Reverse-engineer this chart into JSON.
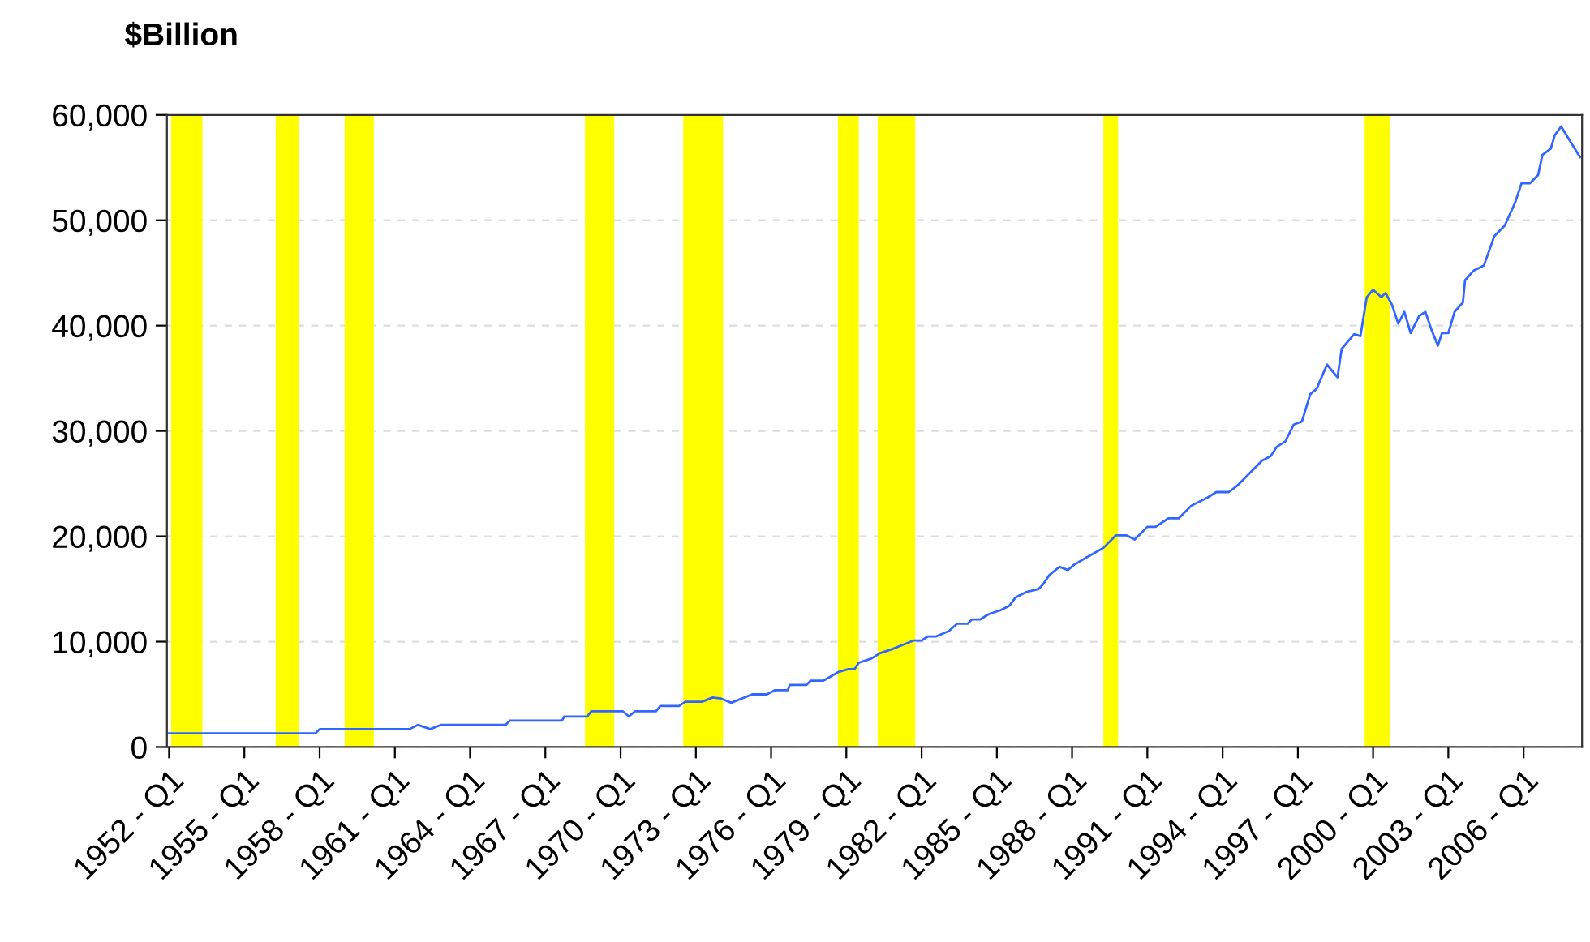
{
  "chart_data": {
    "type": "line",
    "ylabel": "$Billion",
    "x": [
      "1952-01",
      "1957-11",
      "1958-01",
      "1961-08",
      "1961-12",
      "1962-06",
      "1962-11",
      "1965-06",
      "1965-08",
      "1967-09",
      "1967-10",
      "1968-09",
      "1968-11",
      "1970-02",
      "1970-05",
      "1970-08",
      "1971-06",
      "1971-08",
      "1972-05",
      "1972-08",
      "1973-04",
      "1973-09",
      "1974-01",
      "1974-06",
      "1975-04",
      "1975-11",
      "1976-03",
      "1976-09",
      "1976-10",
      "1977-06",
      "1977-08",
      "1978-02",
      "1978-09",
      "1979-02",
      "1979-05",
      "1979-07",
      "1980-01",
      "1980-05",
      "1980-11",
      "1981-04",
      "1981-09",
      "1982-01",
      "1982-04",
      "1982-08",
      "1983-02",
      "1983-06",
      "1983-11",
      "1984-01",
      "1984-05",
      "1984-09",
      "1985-03",
      "1985-07",
      "1985-10",
      "1986-03",
      "1986-09",
      "1986-11",
      "1987-02",
      "1987-07",
      "1987-11",
      "1988-02",
      "1988-08",
      "1989-04",
      "1989-10",
      "1990-03",
      "1990-07",
      "1991-01",
      "1991-05",
      "1991-11",
      "1992-04",
      "1992-10",
      "1993-06",
      "1993-10",
      "1994-04",
      "1994-08",
      "1995-08",
      "1995-12",
      "1996-03",
      "1996-07",
      "1996-11",
      "1997-03",
      "1997-07",
      "1997-10",
      "1998-03",
      "1998-08",
      "1998-10",
      "1999-04",
      "1999-07",
      "1999-10",
      "2000-01",
      "2000-05",
      "2000-07",
      "2000-10",
      "2001-01",
      "2001-04",
      "2001-07",
      "2001-11",
      "2002-02",
      "2002-05",
      "2002-08",
      "2002-10",
      "2003-01",
      "2003-04",
      "2003-08",
      "2003-09",
      "2004-01",
      "2004-06",
      "2004-11",
      "2005-04",
      "2005-09",
      "2005-12",
      "2006-04",
      "2006-08",
      "2006-10",
      "2007-02",
      "2007-04",
      "2007-07",
      "2007-11",
      "2008-04"
    ],
    "series": [
      {
        "color": "#3366ff",
        "values": [
          1300,
          1300,
          1700,
          1700,
          2100,
          1700,
          2100,
          2100,
          2500,
          2500,
          2900,
          2900,
          3400,
          3400,
          2900,
          3400,
          3400,
          3900,
          3900,
          4300,
          4300,
          4700,
          4600,
          4200,
          5000,
          5000,
          5400,
          5400,
          5900,
          5900,
          6300,
          6300,
          7100,
          7400,
          7400,
          8000,
          8400,
          8900,
          9300,
          9700,
          10100,
          10100,
          10500,
          10500,
          11000,
          11700,
          11700,
          12100,
          12100,
          12600,
          13000,
          13400,
          14200,
          14700,
          15000,
          15400,
          16300,
          17100,
          16800,
          17300,
          18000,
          18900,
          20100,
          20100,
          19700,
          20900,
          20900,
          21700,
          21700,
          22900,
          23700,
          24200,
          24200,
          24800,
          27200,
          27600,
          28500,
          29000,
          30600,
          30900,
          33500,
          34000,
          36300,
          35100,
          37800,
          39200,
          39000,
          42700,
          43400,
          42700,
          43100,
          42000,
          40200,
          41300,
          39300,
          40900,
          41300,
          39600,
          38100,
          39300,
          39300,
          41300,
          42200,
          44300,
          45200,
          45700,
          48500,
          49500,
          51700,
          53500,
          53500,
          54300,
          56200,
          56800,
          58100,
          58900,
          57600,
          56000
        ]
      }
    ],
    "xlim": [
      "1951-12",
      "2008-05"
    ],
    "xticks": [
      {
        "value": "1952-01",
        "label": "1952 - Q1"
      },
      {
        "value": "1955-01",
        "label": "1955 - Q1"
      },
      {
        "value": "1958-01",
        "label": "1958 - Q1"
      },
      {
        "value": "1961-01",
        "label": "1961 - Q1"
      },
      {
        "value": "1964-01",
        "label": "1964 - Q1"
      },
      {
        "value": "1967-01",
        "label": "1967 - Q1"
      },
      {
        "value": "1970-01",
        "label": "1970 - Q1"
      },
      {
        "value": "1973-01",
        "label": "1973 - Q1"
      },
      {
        "value": "1976-01",
        "label": "1976 - Q1"
      },
      {
        "value": "1979-01",
        "label": "1979 - Q1"
      },
      {
        "value": "1982-01",
        "label": "1982 - Q1"
      },
      {
        "value": "1985-01",
        "label": "1985 - Q1"
      },
      {
        "value": "1988-01",
        "label": "1988 - Q1"
      },
      {
        "value": "1991-01",
        "label": "1991 - Q1"
      },
      {
        "value": "1994-01",
        "label": "1994 - Q1"
      },
      {
        "value": "1997-01",
        "label": "1997 - Q1"
      },
      {
        "value": "2000-01",
        "label": "2000 - Q1"
      },
      {
        "value": "2003-01",
        "label": "2003 - Q1"
      },
      {
        "value": "2006-01",
        "label": "2006 - Q1"
      }
    ],
    "ylim": [
      0,
      60000
    ],
    "yticks": [
      0,
      {
        "value": 10000,
        "label": "10,000"
      },
      {
        "value": 20000,
        "label": "20,000"
      },
      {
        "value": 30000,
        "label": "30,000"
      },
      {
        "value": 40000,
        "label": "40,000"
      },
      {
        "value": 50000,
        "label": "50,000"
      },
      {
        "value": 60000,
        "label": "60,000"
      }
    ],
    "bands": [
      {
        "axis": "x",
        "from": "1952-02",
        "to": "1953-05",
        "color": "#ffff00"
      },
      {
        "axis": "x",
        "from": "1956-04",
        "to": "1957-03",
        "color": "#ffff00"
      },
      {
        "axis": "x",
        "from": "1959-01",
        "to": "1960-03",
        "color": "#ffff00"
      },
      {
        "axis": "x",
        "from": "1968-08",
        "to": "1969-10",
        "color": "#ffff00"
      },
      {
        "axis": "x",
        "from": "1972-07",
        "to": "1974-02",
        "color": "#ffff00"
      },
      {
        "axis": "x",
        "from": "1978-09",
        "to": "1979-07",
        "color": "#ffff00"
      },
      {
        "axis": "x",
        "from": "1980-04",
        "to": "1981-10",
        "color": "#ffff00"
      },
      {
        "axis": "x",
        "from": "1989-04",
        "to": "1989-11",
        "color": "#ffff00"
      },
      {
        "axis": "x",
        "from": "1999-09",
        "to": "2000-09",
        "color": "#ffff00"
      }
    ],
    "grid": "y",
    "legend": false,
    "marker": "none",
    "line_style": "solid"
  }
}
